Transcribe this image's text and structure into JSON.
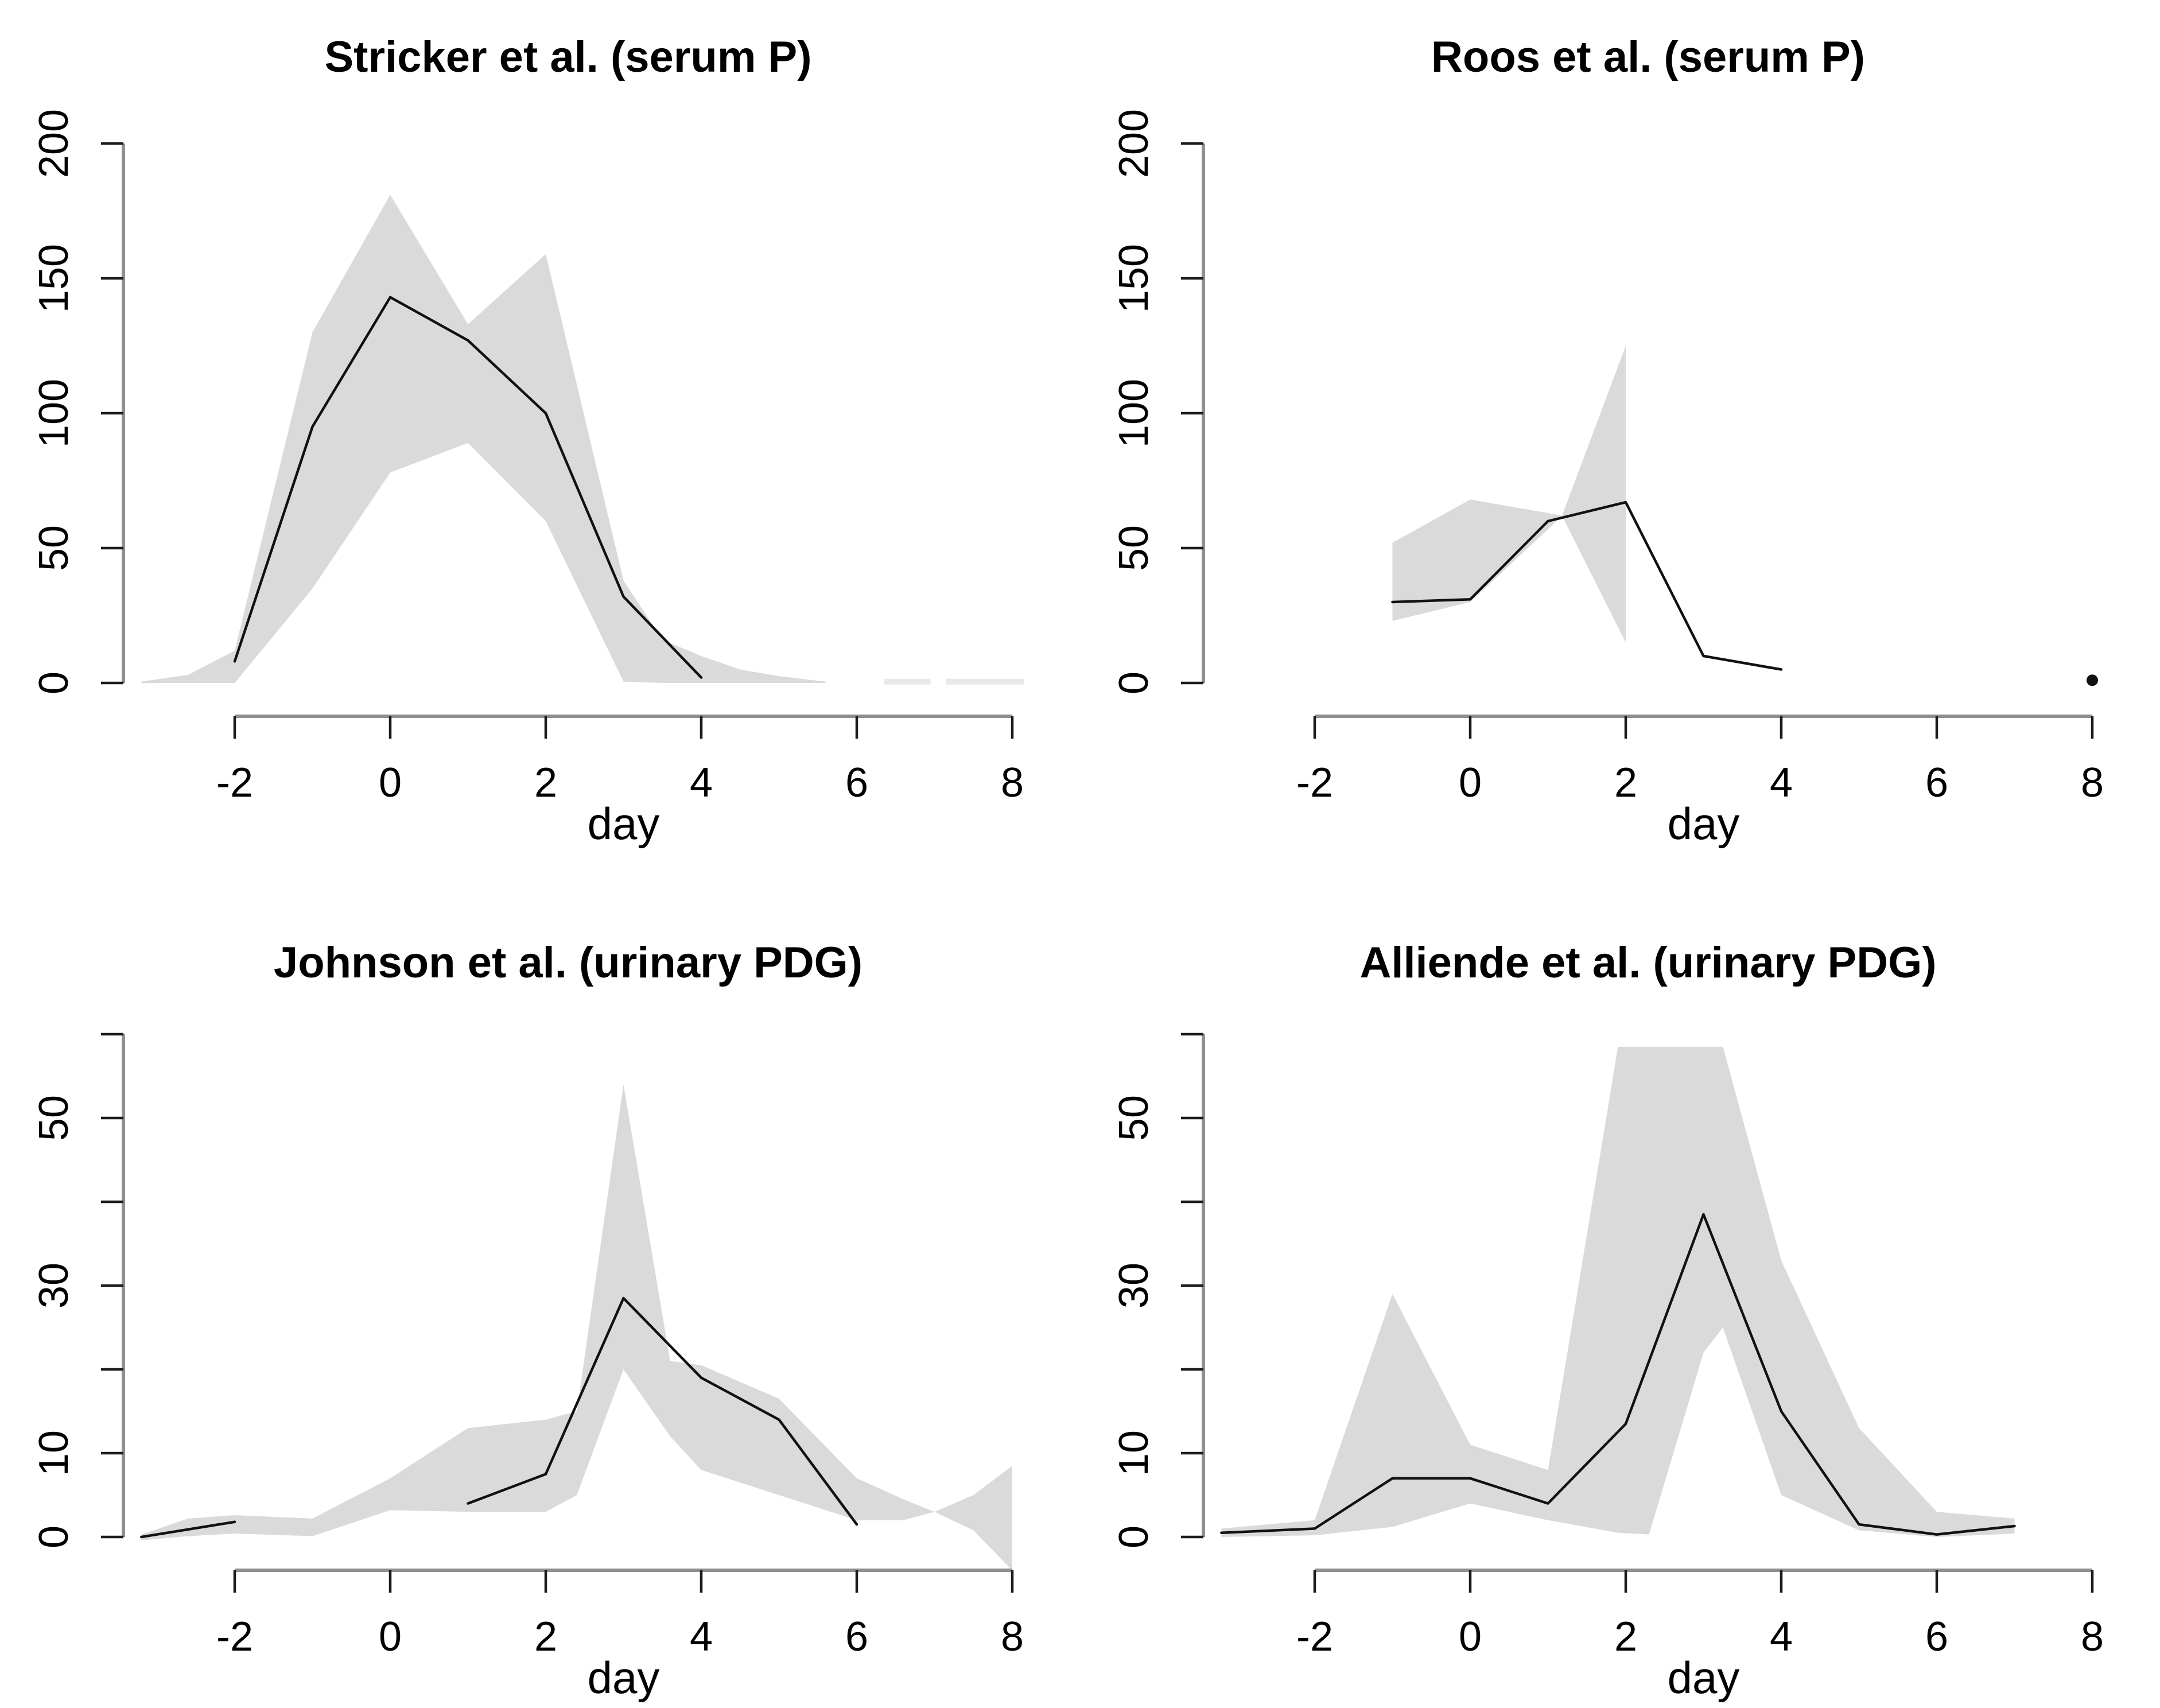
{
  "figure": {
    "background": "#ffffff",
    "colors": {
      "band": "#dadada",
      "band_faint": "#e9e9e9",
      "line": "#111111",
      "axis_line": "#909090",
      "tick_mark": "#1c1c1c",
      "text": "#000000"
    }
  },
  "chart_data": [
    {
      "type": "line",
      "title": "Stricker et al. (serum P)",
      "xlabel": "day",
      "xlim": [
        -3.4,
        8.3
      ],
      "ylim": [
        0,
        200
      ],
      "grid": false,
      "legend": "none",
      "x_ticks": [
        -2,
        0,
        2,
        4,
        6,
        8
      ],
      "y_ticks": [
        {
          "v": 0,
          "label": "0"
        },
        {
          "v": 50,
          "label": "50"
        },
        {
          "v": 100,
          "label": "100"
        },
        {
          "v": 150,
          "label": "150"
        },
        {
          "v": 200,
          "label": "200"
        }
      ],
      "lines": [
        {
          "x": [
            -2,
            -1,
            0,
            1,
            2,
            3,
            4
          ],
          "y": [
            8,
            95,
            143,
            127,
            100,
            32,
            2
          ]
        }
      ],
      "band": {
        "x": [
          -3.2,
          -2.6,
          -2,
          -1,
          0,
          1,
          2,
          3,
          3.5,
          4,
          4.5,
          5,
          5.6
        ],
        "upper": [
          0.5,
          3,
          12,
          130,
          181,
          133,
          159,
          38,
          16,
          10,
          5,
          2.5,
          0.5
        ],
        "lower": [
          0,
          0,
          0,
          35,
          78,
          89,
          60,
          0.5,
          0,
          0,
          0,
          0,
          0
        ]
      },
      "tail_strips": [
        {
          "x1": 6.35,
          "x2": 6.95,
          "y": 0.5
        },
        {
          "x1": 7.15,
          "x2": 8.15,
          "y": 0.5
        }
      ],
      "points": []
    },
    {
      "type": "line",
      "title": "Roos et al. (serum P)",
      "xlabel": "day",
      "xlim": [
        -3.4,
        8.3
      ],
      "ylim": [
        0,
        200
      ],
      "grid": false,
      "legend": "none",
      "x_ticks": [
        -2,
        0,
        2,
        4,
        6,
        8
      ],
      "y_ticks": [
        {
          "v": 0,
          "label": "0"
        },
        {
          "v": 50,
          "label": "50"
        },
        {
          "v": 100,
          "label": "100"
        },
        {
          "v": 150,
          "label": "150"
        },
        {
          "v": 200,
          "label": "200"
        }
      ],
      "lines": [
        {
          "x": [
            -1,
            0,
            1,
            2,
            3,
            4
          ],
          "y": [
            30,
            31,
            60,
            67,
            10,
            5
          ]
        }
      ],
      "band": {
        "x": [
          -1,
          0,
          1,
          1.18,
          2
        ],
        "upper": [
          52,
          68,
          63,
          62,
          125
        ],
        "lower": [
          23,
          30,
          57,
          62,
          15
        ]
      },
      "tail_strips": [],
      "points": [
        {
          "x": 8,
          "y": 1
        }
      ]
    },
    {
      "type": "line",
      "title": "Johnson et al. (urinary PDG)",
      "xlabel": "day",
      "xlim": [
        -3.4,
        8.3
      ],
      "ylim": [
        0,
        60
      ],
      "grid": false,
      "legend": "none",
      "x_ticks": [
        -2,
        0,
        2,
        4,
        6,
        8
      ],
      "y_ticks": [
        {
          "v": 0,
          "label": "0"
        },
        {
          "v": 10,
          "label": "10"
        },
        {
          "v": 20,
          "label": ""
        },
        {
          "v": 30,
          "label": "30"
        },
        {
          "v": 40,
          "label": ""
        },
        {
          "v": 50,
          "label": "50"
        },
        {
          "v": 60,
          "label": ""
        }
      ],
      "lines": [
        {
          "x": [
            -3.2,
            -2
          ],
          "y": [
            0,
            1.8
          ]
        },
        {
          "x": [
            1,
            2,
            3,
            4,
            5,
            6
          ],
          "y": [
            4,
            7.5,
            28.5,
            19,
            14,
            1.5
          ]
        }
      ],
      "band": {
        "x": [
          -3.2,
          -2.6,
          -2,
          -1,
          0,
          1,
          2,
          2.4,
          3,
          3.6,
          4,
          5,
          6,
          6.6,
          7,
          7.5,
          8
        ],
        "upper": [
          0.3,
          2.2,
          2.6,
          2.2,
          7,
          13,
          14,
          15,
          54,
          21,
          20.5,
          16.5,
          7,
          4.5,
          3,
          5,
          8.5
        ],
        "lower": [
          -0.4,
          0.1,
          0.4,
          0.1,
          3.2,
          3,
          3,
          5,
          20,
          12,
          8,
          5,
          2,
          2,
          3,
          0.8,
          -4
        ]
      },
      "tail_strips": [],
      "points": []
    },
    {
      "type": "line",
      "title": "Alliende et al. (urinary PDG)",
      "xlabel": "day",
      "xlim": [
        -3.4,
        8.3
      ],
      "ylim": [
        0,
        60
      ],
      "grid": false,
      "legend": "none",
      "x_ticks": [
        -2,
        0,
        2,
        4,
        6,
        8
      ],
      "y_ticks": [
        {
          "v": 0,
          "label": "0"
        },
        {
          "v": 10,
          "label": "10"
        },
        {
          "v": 20,
          "label": ""
        },
        {
          "v": 30,
          "label": "30"
        },
        {
          "v": 40,
          "label": ""
        },
        {
          "v": 50,
          "label": "50"
        },
        {
          "v": 60,
          "label": ""
        }
      ],
      "lines": [
        {
          "x": [
            -3.2,
            -2,
            -1,
            0,
            1,
            2,
            3,
            4,
            5,
            6,
            7
          ],
          "y": [
            0.5,
            1,
            7,
            7,
            4,
            13.5,
            38.5,
            15,
            1.5,
            0.3,
            1.3
          ]
        }
      ],
      "band": {
        "x": [
          -3.2,
          -2,
          -1,
          0,
          1,
          1.9,
          2.3,
          3,
          3.25,
          4,
          5,
          6,
          7
        ],
        "upper": [
          1,
          2,
          29,
          11,
          8,
          58.5,
          58.5,
          58.5,
          58.5,
          33,
          13,
          3,
          2.2
        ],
        "lower": [
          0,
          0.2,
          1.2,
          4,
          2,
          0.5,
          0.3,
          22,
          25,
          5,
          0.8,
          0,
          0.4
        ]
      },
      "tail_strips": [],
      "points": []
    }
  ]
}
